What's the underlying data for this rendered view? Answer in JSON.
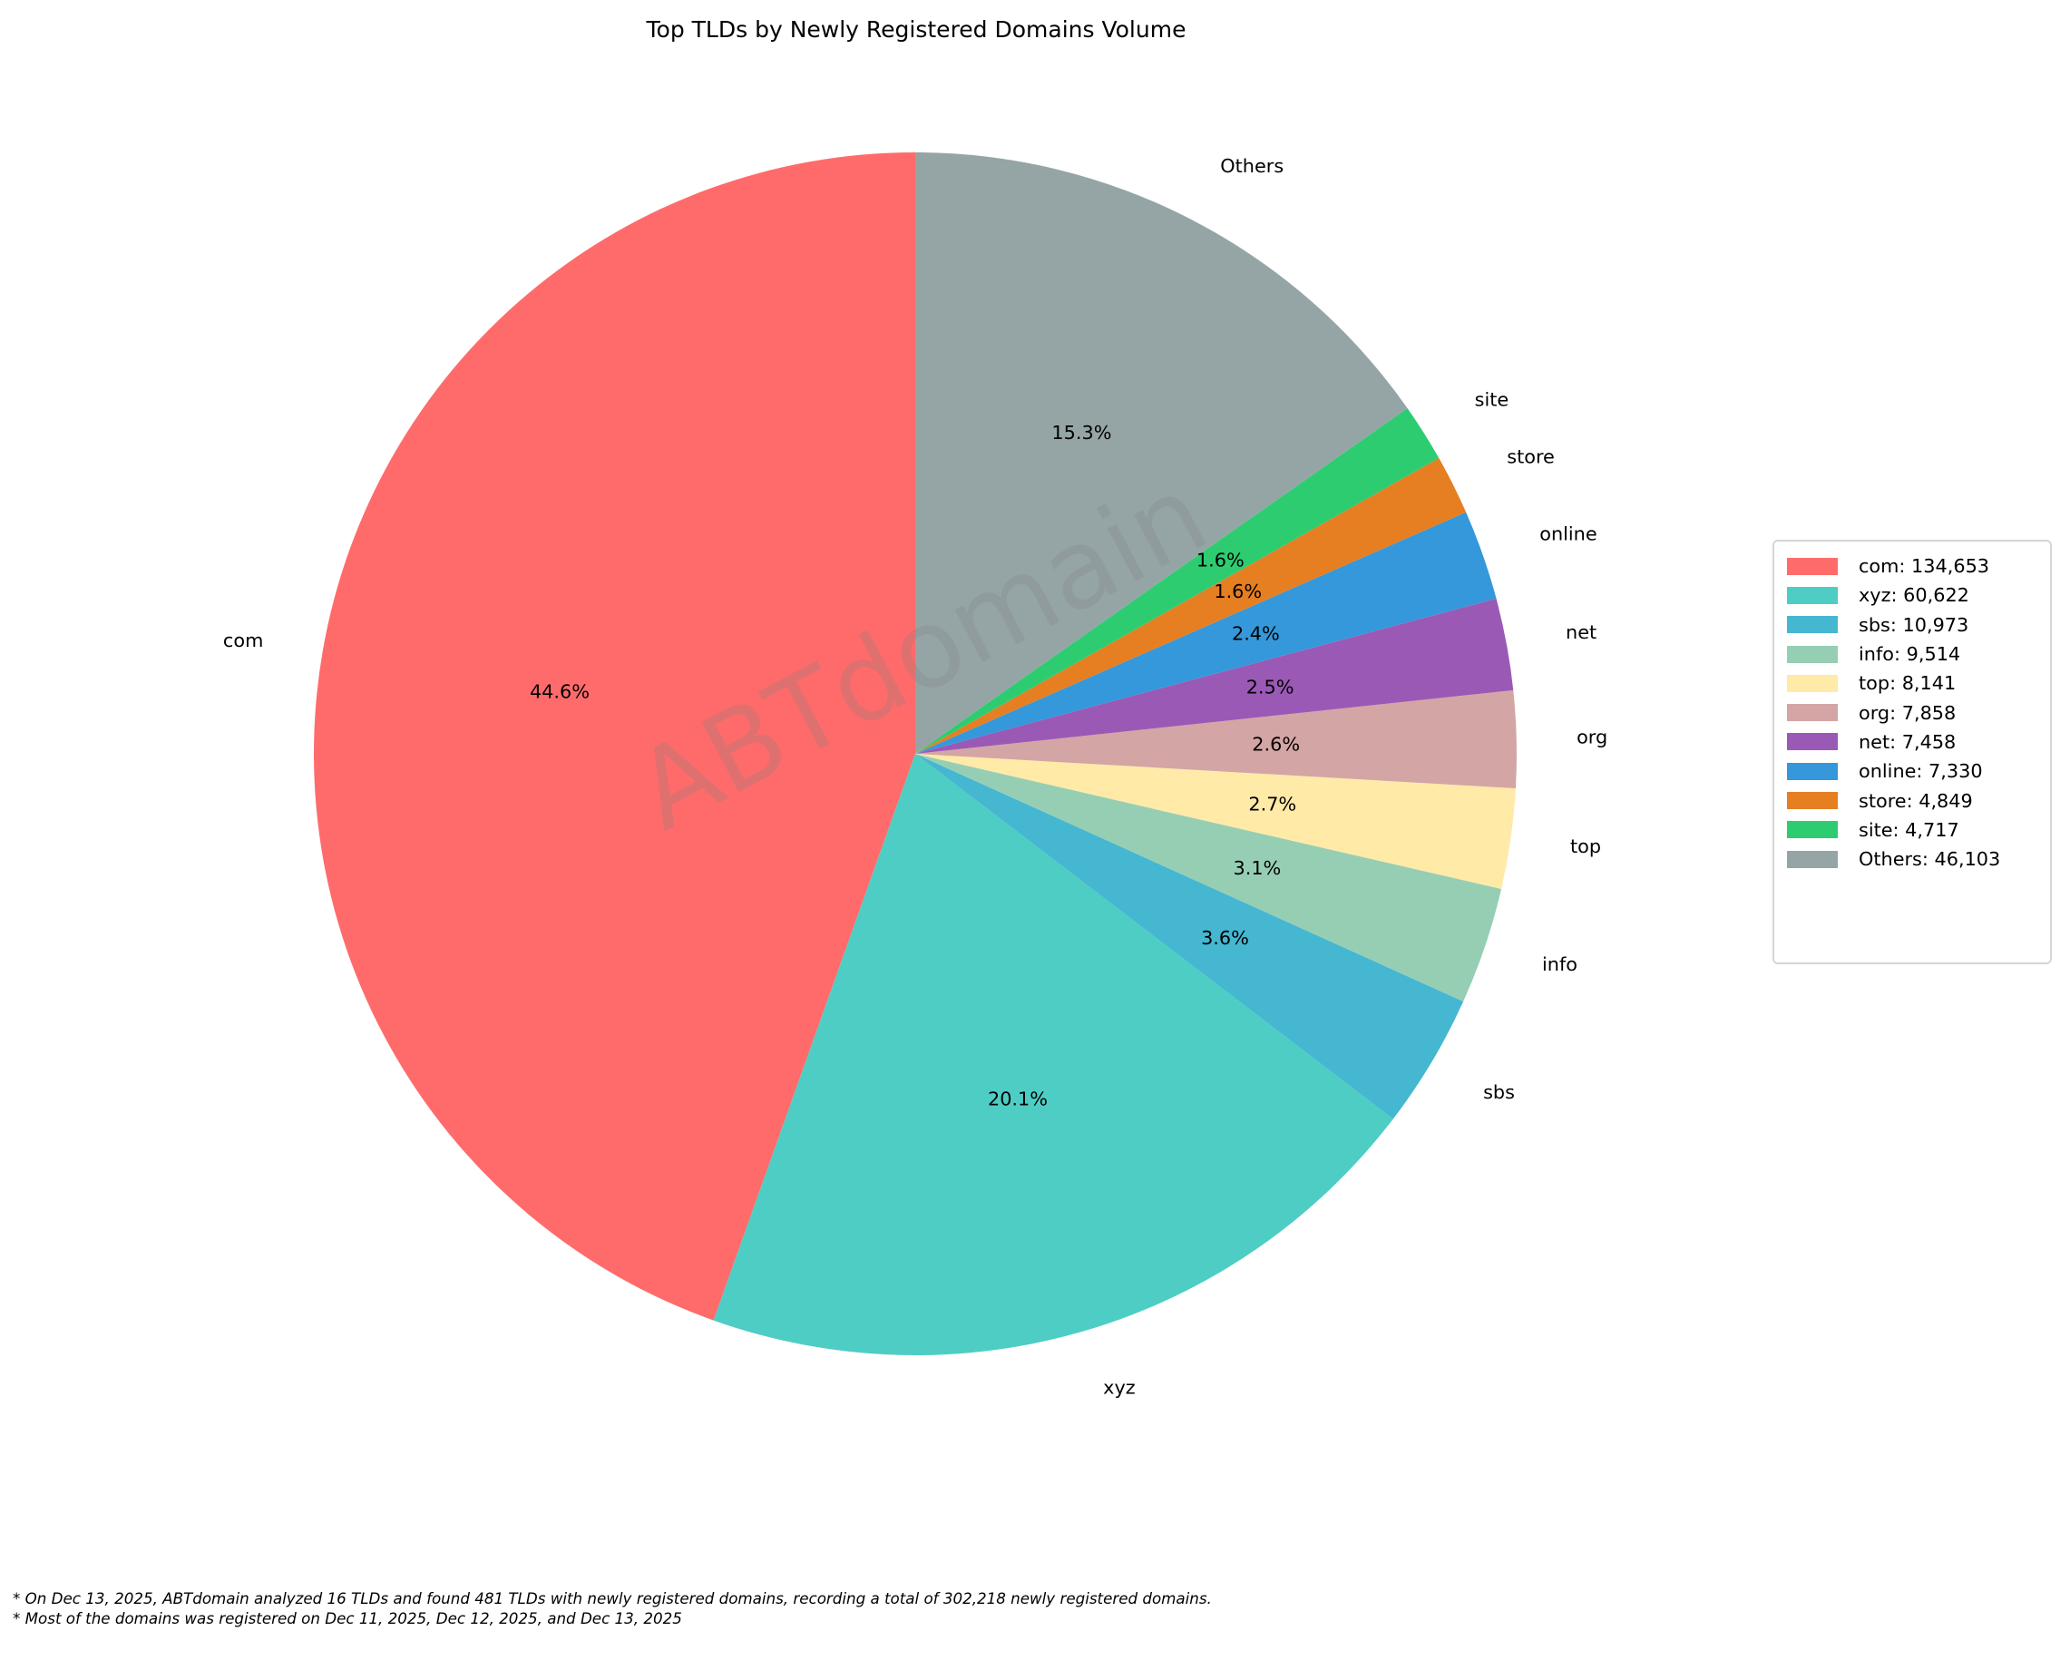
{
  "chart_data": {
    "type": "pie",
    "title": "Top TLDs by Newly Registered Domains Volume",
    "categories": [
      "com",
      "xyz",
      "sbs",
      "info",
      "top",
      "org",
      "net",
      "online",
      "store",
      "site",
      "Others"
    ],
    "values": [
      134653,
      60622,
      10973,
      9514,
      8141,
      7858,
      7458,
      7330,
      4849,
      4717,
      46103
    ],
    "percent_labels": [
      "44.6%",
      "20.1%",
      "3.6%",
      "3.1%",
      "2.7%",
      "2.6%",
      "2.5%",
      "2.4%",
      "1.6%",
      "1.6%",
      "15.3%"
    ],
    "legend_labels": [
      "com: 134,653",
      "xyz: 60,622",
      "sbs: 10,973",
      "info: 9,514",
      "top: 8,141",
      "org: 7,858",
      "net: 7,458",
      "online: 7,330",
      "store: 4,849",
      "site: 4,717",
      "Others: 46,103"
    ],
    "colors": [
      "#ff6b6b",
      "#4ecdc4",
      "#45b7d1",
      "#96ceb4",
      "#ffeaa7",
      "#d4a5a5",
      "#9b59b6",
      "#3498db",
      "#e67e22",
      "#2ecc71",
      "#95a5a6"
    ],
    "start_angle": 90,
    "direction": "counterclockwise",
    "legend_position": "right"
  },
  "watermark": "ABTdomain",
  "footnotes": [
    "* On Dec 13, 2025, ABTdomain analyzed 16 TLDs and found 481 TLDs with newly registered domains, recording a total of 302,218 newly registered domains.",
    "* Most of the domains was registered on Dec 11, 2025, Dec 12, 2025, and Dec 13, 2025"
  ]
}
